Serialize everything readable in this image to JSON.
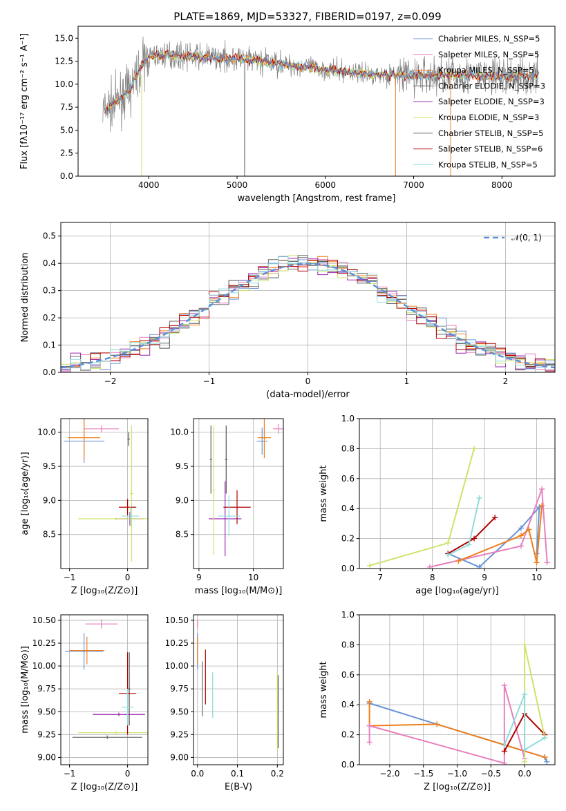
{
  "figure_title": "PLATE=1869, MJD=53327, FIBERID=0197, z=0.099",
  "colors": {
    "model_colors": [
      "#6b93d6",
      "#e77fbe",
      "#f07d1a",
      "#555555",
      "#9b27b0",
      "#cde36a",
      "#666666",
      "#b00000",
      "#8fdcdc"
    ],
    "spectrum_data": "#808080",
    "normal_curve": "#5b8fd6",
    "grid": "#b0b0b0"
  },
  "chart_data": [
    {
      "id": "spectrum",
      "type": "line",
      "title": "PLATE=1869, MJD=53327, FIBERID=0197, z=0.099",
      "xlabel": "wavelength [Angstrom, rest frame]",
      "ylabel": "Flux [fλ10⁻¹⁷ erg cm⁻² s⁻¹ A⁻¹]",
      "xlim": [
        3200,
        8600
      ],
      "ylim": [
        0,
        16.3
      ],
      "xticks": [
        4000,
        5000,
        6000,
        7000,
        8000
      ],
      "yticks": [
        0.0,
        2.5,
        5.0,
        7.5,
        10.0,
        12.5,
        15.0
      ],
      "ytick_labels": [
        "0.0",
        "2.5",
        "5.0",
        "7.5",
        "10.0",
        "12.5",
        "15.0"
      ],
      "grid": false,
      "legend_position": "upper-right",
      "legend": [
        {
          "label": "Chabrier MILES, N_SSP=5"
        },
        {
          "label": "Salpeter MILES, N_SSP=5"
        },
        {
          "label": "Kroupa MILES, N_SSP=5"
        },
        {
          "label": "Chabrier ELODIE, N_SSP=3"
        },
        {
          "label": "Salpeter ELODIE, N_SSP=3"
        },
        {
          "label": "Kroupa ELODIE, N_SSP=3"
        },
        {
          "label": "Chabrier STELIB, N_SSP=5"
        },
        {
          "label": "Salpeter STELIB, N_SSP=6"
        },
        {
          "label": "Kroupa STELIB, N_SSP=5"
        }
      ],
      "continuum": {
        "x": [
          3500,
          3600,
          3800,
          3900,
          4000,
          4200,
          4500,
          5000,
          5500,
          6000,
          6500,
          7000,
          7500,
          8000,
          8400
        ],
        "y": [
          7.2,
          7.8,
          9.5,
          11.8,
          13.0,
          13.2,
          13.0,
          12.8,
          12.2,
          11.6,
          11.1,
          10.9,
          11.0,
          10.8,
          10.9
        ]
      }
    },
    {
      "id": "residuals",
      "type": "histogram",
      "xlabel": "(data-model)/error",
      "ylabel": "Normed distribution",
      "xlim": [
        -2.5,
        2.5
      ],
      "ylim": [
        0,
        0.55
      ],
      "xticks": [
        -2,
        -1,
        0,
        1,
        2
      ],
      "xtick_labels": [
        "−2",
        "−1",
        "0",
        "1",
        "2"
      ],
      "yticks": [
        0.0,
        0.1,
        0.2,
        0.3,
        0.4,
        0.5
      ],
      "ytick_labels": [
        "0.0",
        "0.1",
        "0.2",
        "0.3",
        "0.4",
        "0.5"
      ],
      "grid": true,
      "legend_position": "upper-right",
      "legend": [
        {
          "label": "𝒩(0, 1)"
        }
      ],
      "bin_width": 0.1
    },
    {
      "id": "age-vs-Z",
      "type": "scatter",
      "xlabel": "Z [log₁₀(Z/Z⊙)]",
      "ylabel": "age  [log₁₀(age/yr)]",
      "xlim": [
        -1.15,
        0.35
      ],
      "ylim": [
        8.0,
        10.2
      ],
      "xticks": [
        -1,
        0
      ],
      "xtick_labels": [
        "−1",
        "0"
      ],
      "yticks": [
        8.5,
        9.0,
        9.5,
        10.0
      ],
      "ytick_labels": [
        "8.5",
        "9.0",
        "9.5",
        "10.0"
      ],
      "grid": true,
      "points": [
        {
          "series": 0,
          "x": -0.75,
          "y": 9.87,
          "xerr": 0.35,
          "yerr": 0.32
        },
        {
          "series": 1,
          "x": -0.45,
          "y": 10.05,
          "xerr": 0.3,
          "yerr": 0.05
        },
        {
          "series": 2,
          "x": -0.75,
          "y": 9.92,
          "xerr": 0.28,
          "yerr": 0.32
        },
        {
          "series": 3,
          "x": 0.02,
          "y": 9.9,
          "xerr": 0.02,
          "yerr": 0.1
        },
        {
          "series": 4,
          "x": 0.04,
          "y": 8.73,
          "xerr": 0.25,
          "yerr": 0.1
        },
        {
          "series": 5,
          "x": 0.07,
          "y": 9.1,
          "xerr": 0.03,
          "yerr": 1.0
        },
        {
          "series": 5,
          "x": -0.2,
          "y": 8.73,
          "xerr": 0.65,
          "yerr": 0.02
        },
        {
          "series": 7,
          "x": 0.0,
          "y": 8.9,
          "xerr": 0.15,
          "yerr": 0.12
        },
        {
          "series": 8,
          "x": 0.05,
          "y": 8.77,
          "xerr": 0.15,
          "yerr": 0.15
        }
      ]
    },
    {
      "id": "age-vs-mass",
      "type": "scatter",
      "xlabel": "mass [log₁₀(M/M⊙)]",
      "xlim": [
        8.9,
        10.55
      ],
      "ylim": [
        8.0,
        10.2
      ],
      "xticks": [
        9,
        10
      ],
      "xtick_labels": [
        "9",
        "10"
      ],
      "yticks": [
        8.5,
        9.0,
        9.5,
        10.0
      ],
      "ytick_labels": [
        "8.5",
        "9.0",
        "9.5",
        "10.0"
      ],
      "grid": true,
      "points": [
        {
          "series": 0,
          "x": 10.16,
          "y": 9.87,
          "xerr": 0.1,
          "yerr": 0.2
        },
        {
          "series": 1,
          "x": 10.46,
          "y": 10.05,
          "xerr": 0.1,
          "yerr": 0.07
        },
        {
          "series": 2,
          "x": 10.2,
          "y": 9.92,
          "xerr": 0.12,
          "yerr": 0.3
        },
        {
          "series": 3,
          "x": 9.5,
          "y": 9.6,
          "xerr": 0.02,
          "yerr": 0.5
        },
        {
          "series": 4,
          "x": 9.48,
          "y": 8.73,
          "xerr": 0.3,
          "yerr": 0.55
        },
        {
          "series": 5,
          "x": 9.27,
          "y": 9.15,
          "xerr": 0.02,
          "yerr": 0.95
        },
        {
          "series": 6,
          "x": 9.22,
          "y": 9.6,
          "xerr": 0.02,
          "yerr": 0.5
        },
        {
          "series": 7,
          "x": 9.7,
          "y": 8.9,
          "xerr": 0.25,
          "yerr": 0.25
        },
        {
          "series": 8,
          "x": 9.55,
          "y": 8.77,
          "xerr": 0.2,
          "yerr": 0.3
        }
      ]
    },
    {
      "id": "weight-vs-age",
      "type": "line",
      "xlabel": "age  [log₁₀(age/yr)]",
      "ylabel": "mass weight",
      "xlim": [
        6.6,
        10.35
      ],
      "ylim": [
        0,
        1.0
      ],
      "xticks": [
        7,
        8,
        9,
        10
      ],
      "xtick_labels": [
        "7",
        "8",
        "9",
        "10"
      ],
      "yticks": [
        0.0,
        0.2,
        0.4,
        0.6,
        0.8,
        1.0
      ],
      "ytick_labels": [
        "0.0",
        "0.2",
        "0.4",
        "0.6",
        "0.8",
        "1.0"
      ],
      "grid": true,
      "series": [
        {
          "series": 0,
          "x": [
            8.3,
            8.9,
            9.7,
            10.05,
            10.0
          ],
          "y": [
            0.1,
            0.01,
            0.27,
            0.41,
            0.1
          ]
        },
        {
          "series": 1,
          "x": 7.95,
          "x_list": [
            7.95,
            9.7,
            10.1,
            10.2
          ],
          "y_list": [
            0.01,
            0.15,
            0.53,
            0.04
          ]
        },
        {
          "series": 2,
          "x_list": [
            8.5,
            9.7,
            9.85,
            10.0,
            10.1
          ],
          "y_list": [
            0.05,
            0.22,
            0.26,
            0.04,
            0.42
          ]
        },
        {
          "series": 7,
          "x_list": [
            8.3,
            8.8,
            9.2
          ],
          "y_list": [
            0.1,
            0.2,
            0.34
          ]
        },
        {
          "series": 5,
          "x_list": [
            6.8,
            8.3,
            8.8
          ],
          "y_list": [
            0.02,
            0.17,
            0.8
          ]
        },
        {
          "series": 8,
          "x_list": [
            8.3,
            8.7,
            8.9
          ],
          "y_list": [
            0.09,
            0.16,
            0.47
          ]
        }
      ]
    },
    {
      "id": "mass-vs-Z",
      "type": "scatter",
      "xlabel": "Z [log₁₀(Z/Z⊙)]",
      "ylabel": "mass [log₁₀(M/M⊙)]",
      "xlim": [
        -1.15,
        0.35
      ],
      "ylim": [
        8.92,
        10.56
      ],
      "xticks": [
        -1,
        0
      ],
      "xtick_labels": [
        "−1",
        "0"
      ],
      "yticks": [
        9.0,
        9.25,
        9.5,
        9.75,
        10.0,
        10.25,
        10.5
      ],
      "ytick_labels": [
        "9.00",
        "9.25",
        "9.50",
        "9.75",
        "10.00",
        "10.25",
        "10.50"
      ],
      "grid": true,
      "points": [
        {
          "series": 0,
          "x": -0.75,
          "y": 10.16,
          "xerr": 0.33,
          "yerr": 0.2
        },
        {
          "series": 1,
          "x": -0.45,
          "y": 10.46,
          "xerr": 0.28,
          "yerr": 0.05
        },
        {
          "series": 2,
          "x": -0.7,
          "y": 10.17,
          "xerr": 0.3,
          "yerr": 0.15
        },
        {
          "series": 3,
          "x": 0.03,
          "y": 9.75,
          "xerr": 0.02,
          "yerr": 0.4
        },
        {
          "series": 4,
          "x": -0.15,
          "y": 9.47,
          "xerr": 0.45,
          "yerr": 0.02
        },
        {
          "series": 5,
          "x": -0.2,
          "y": 9.27,
          "xerr": 0.65,
          "yerr": 0.02
        },
        {
          "series": 6,
          "x": -0.35,
          "y": 9.22,
          "xerr": 0.6,
          "yerr": 0.02
        },
        {
          "series": 7,
          "x": 0.0,
          "y": 9.7,
          "xerr": 0.15,
          "yerr": 0.45
        },
        {
          "series": 8,
          "x": 0.0,
          "y": 9.55,
          "xerr": 0.1,
          "yerr": 0.2
        }
      ]
    },
    {
      "id": "mass-vs-ebv",
      "type": "scatter",
      "xlabel": "E(B-V)",
      "xlim": [
        -0.01,
        0.215
      ],
      "ylim": [
        8.92,
        10.56
      ],
      "xticks": [
        0.0,
        0.1,
        0.2
      ],
      "xtick_labels": [
        "0.0",
        "0.1",
        "0.2"
      ],
      "yticks": [
        9.0,
        9.25,
        9.5,
        9.75,
        10.0,
        10.25,
        10.5
      ],
      "ytick_labels": [
        "9.00",
        "9.25",
        "9.50",
        "9.75",
        "10.00",
        "10.25",
        "10.50"
      ],
      "grid": true,
      "points": [
        {
          "series": 0,
          "x": 0.0,
          "y": 10.16,
          "xerr": 0.0,
          "yerr": 0.2
        },
        {
          "series": 1,
          "x": 0.0,
          "y": 10.46,
          "xerr": 0.0,
          "yerr": 0.05
        },
        {
          "series": 2,
          "x": 0.0,
          "y": 10.17,
          "xerr": 0.0,
          "yerr": 0.15
        },
        {
          "series": 6,
          "x": 0.012,
          "y": 9.75,
          "xerr": 0.0,
          "yerr": 0.3
        },
        {
          "series": 7,
          "x": 0.02,
          "y": 9.88,
          "xerr": 0.0,
          "yerr": 0.3
        },
        {
          "series": 8,
          "x": 0.038,
          "y": 9.68,
          "xerr": 0.0,
          "yerr": 0.25
        },
        {
          "series": 5,
          "x": 0.2,
          "y": 9.5,
          "xerr": 0.0,
          "yerr": 0.42
        },
        {
          "series": 3,
          "x": 0.202,
          "y": 9.5,
          "xerr": 0.0,
          "yerr": 0.4
        }
      ]
    },
    {
      "id": "weight-vs-Z",
      "type": "line",
      "xlabel": "Z [log₁₀(Z/Z⊙)]",
      "ylabel": "mass weight",
      "xlim": [
        -2.45,
        0.45
      ],
      "ylim": [
        0,
        1.0
      ],
      "xticks": [
        -2.0,
        -1.5,
        -1.0,
        -0.5,
        0.0
      ],
      "xtick_labels": [
        "−2.0",
        "−1.5",
        "−1.0",
        "−0.5",
        "0.0"
      ],
      "yticks": [
        0.0,
        0.2,
        0.4,
        0.6,
        0.8,
        1.0
      ],
      "ytick_labels": [
        "0.0",
        "0.2",
        "0.4",
        "0.6",
        "0.8",
        "1.0"
      ],
      "grid": true,
      "series": [
        {
          "series": 0,
          "x_list": [
            -2.3,
            -1.3,
            0.3,
            0.33,
            0.3
          ],
          "y_list": [
            0.41,
            0.27,
            0.05,
            0.02,
            0.05
          ]
        },
        {
          "series": 2,
          "x_list": [
            -2.3,
            -2.3,
            -1.3,
            0.3
          ],
          "y_list": [
            0.42,
            0.26,
            0.27,
            0.05
          ]
        },
        {
          "series": 1,
          "x_list": [
            -2.3,
            -2.3,
            -0.3,
            -0.3,
            0.0
          ],
          "y_list": [
            0.15,
            0.26,
            0.01,
            0.53,
            0.04
          ]
        },
        {
          "series": 7,
          "x_list": [
            -0.3,
            0.0,
            0.3
          ],
          "y_list": [
            0.09,
            0.34,
            0.2
          ]
        },
        {
          "series": 5,
          "x_list": [
            0.0,
            0.0,
            0.3
          ],
          "y_list": [
            0.02,
            0.8,
            0.18
          ]
        },
        {
          "series": 8,
          "x_list": [
            -0.3,
            0.0,
            0.0,
            0.3
          ],
          "y_list": [
            0.13,
            0.47,
            0.1,
            0.18
          ]
        }
      ]
    }
  ]
}
